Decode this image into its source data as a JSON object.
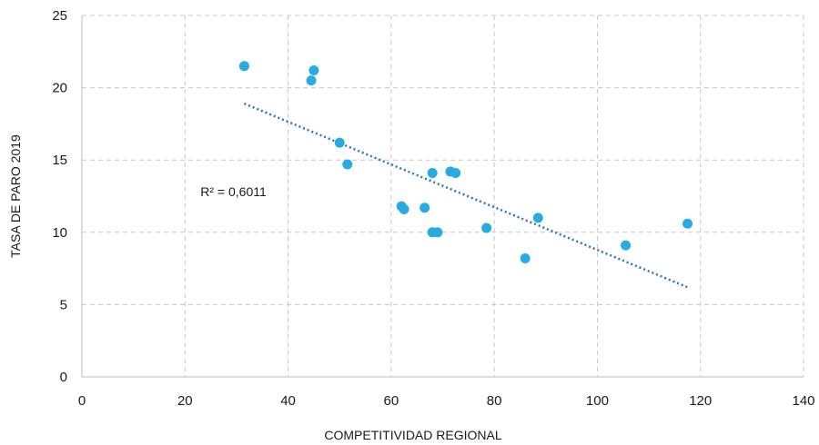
{
  "chart_data": {
    "type": "scatter",
    "title": "",
    "xlabel": "COMPETITIVIDAD REGIONAL",
    "ylabel": "TASA DE PARO 2019",
    "xlim": [
      0,
      140
    ],
    "ylim": [
      0,
      25
    ],
    "xticks": [
      0,
      20,
      40,
      60,
      80,
      100,
      120,
      140
    ],
    "yticks": [
      0,
      5,
      10,
      15,
      20,
      25
    ],
    "grid": true,
    "series": [
      {
        "color": "#29abe2",
        "points": [
          {
            "x": 31.5,
            "y": 21.5
          },
          {
            "x": 44.5,
            "y": 20.5
          },
          {
            "x": 45.0,
            "y": 21.2
          },
          {
            "x": 50.0,
            "y": 16.2
          },
          {
            "x": 51.5,
            "y": 14.7
          },
          {
            "x": 62.0,
            "y": 11.8
          },
          {
            "x": 62.5,
            "y": 11.6
          },
          {
            "x": 66.5,
            "y": 11.7
          },
          {
            "x": 68.0,
            "y": 14.1
          },
          {
            "x": 68.0,
            "y": 10.0
          },
          {
            "x": 69.0,
            "y": 10.0
          },
          {
            "x": 71.5,
            "y": 14.2
          },
          {
            "x": 72.5,
            "y": 14.1
          },
          {
            "x": 78.5,
            "y": 10.3
          },
          {
            "x": 86.0,
            "y": 8.2
          },
          {
            "x": 88.5,
            "y": 11.0
          },
          {
            "x": 105.5,
            "y": 9.1
          },
          {
            "x": 117.5,
            "y": 10.6
          }
        ]
      }
    ],
    "trendline": {
      "type": "linear",
      "color": "#2b78b2",
      "x": [
        31.5,
        117.5
      ],
      "y": [
        18.9,
        6.2
      ]
    },
    "annotations": [
      {
        "text": "R² = 0,6011",
        "x": 23,
        "y": 12.5
      }
    ]
  }
}
